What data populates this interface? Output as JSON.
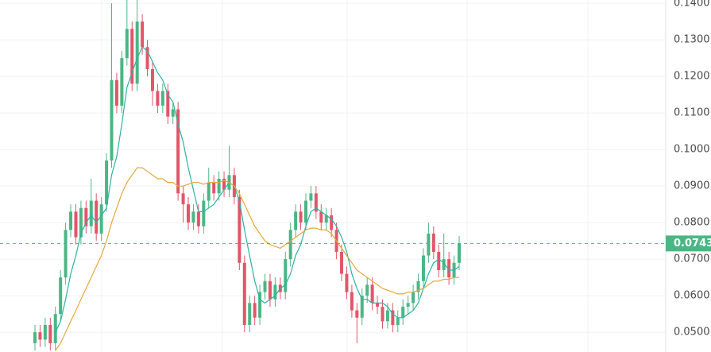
{
  "chart_data": {
    "type": "candlestick",
    "ylim": [
      0.0446,
      0.1409
    ],
    "yticks": [
      {
        "value": 0.14,
        "label": "0.1400"
      },
      {
        "value": 0.13,
        "label": "0.1300"
      },
      {
        "value": 0.12,
        "label": "0.1200"
      },
      {
        "value": 0.11,
        "label": "0.1100"
      },
      {
        "value": 0.1,
        "label": "0.1000"
      },
      {
        "value": 0.09,
        "label": "0.0900"
      },
      {
        "value": 0.08,
        "label": "0.0800"
      },
      {
        "value": 0.07,
        "label": "0.0700"
      },
      {
        "value": 0.06,
        "label": "0.0600"
      },
      {
        "value": 0.05,
        "label": "0.0500"
      }
    ],
    "grid": true,
    "up_color": "#4bb685",
    "down_color": "#e2566a",
    "last_price": 0.0743,
    "last_price_color": "#4bb685",
    "candles": {
      "open": [
        0.047,
        0.05,
        0.048,
        0.052,
        0.047,
        0.055,
        0.065,
        0.078,
        0.083,
        0.076,
        0.084,
        0.079,
        0.086,
        0.077,
        0.085,
        0.097,
        0.119,
        0.112,
        0.125,
        0.133,
        0.118,
        0.135,
        0.128,
        0.122,
        0.116,
        0.112,
        0.116,
        0.109,
        0.111,
        0.088,
        0.085,
        0.08,
        0.083,
        0.079,
        0.086,
        0.091,
        0.088,
        0.092,
        0.089,
        0.093,
        0.087,
        0.069,
        0.052,
        0.058,
        0.054,
        0.061,
        0.064,
        0.059,
        0.063,
        0.061,
        0.07,
        0.078,
        0.083,
        0.08,
        0.086,
        0.088,
        0.083,
        0.08,
        0.082,
        0.078,
        0.072,
        0.066,
        0.061,
        0.056,
        0.054,
        0.06,
        0.063,
        0.058,
        0.057,
        0.053,
        0.056,
        0.052,
        0.054,
        0.057,
        0.058,
        0.061,
        0.064,
        0.071,
        0.077,
        0.072,
        0.067,
        0.07,
        0.065,
        0.069
      ],
      "high": [
        0.052,
        0.052,
        0.054,
        0.054,
        0.057,
        0.067,
        0.08,
        0.085,
        0.085,
        0.086,
        0.086,
        0.092,
        0.088,
        0.087,
        0.099,
        0.14,
        0.121,
        0.127,
        0.141,
        0.135,
        0.141,
        0.137,
        0.13,
        0.124,
        0.118,
        0.118,
        0.118,
        0.113,
        0.113,
        0.09,
        0.087,
        0.085,
        0.085,
        0.088,
        0.095,
        0.093,
        0.094,
        0.094,
        0.101,
        0.095,
        0.089,
        0.071,
        0.06,
        0.06,
        0.063,
        0.066,
        0.066,
        0.065,
        0.065,
        0.072,
        0.08,
        0.085,
        0.085,
        0.088,
        0.09,
        0.09,
        0.085,
        0.084,
        0.084,
        0.08,
        0.074,
        0.068,
        0.063,
        0.058,
        0.062,
        0.065,
        0.065,
        0.06,
        0.059,
        0.058,
        0.058,
        0.056,
        0.059,
        0.06,
        0.063,
        0.066,
        0.073,
        0.08,
        0.079,
        0.074,
        0.077,
        0.072,
        0.071,
        0.0763
      ],
      "low": [
        0.045,
        0.046,
        0.046,
        0.045,
        0.045,
        0.053,
        0.063,
        0.076,
        0.074,
        0.074,
        0.077,
        0.077,
        0.075,
        0.075,
        0.083,
        0.095,
        0.11,
        0.11,
        0.123,
        0.116,
        0.116,
        0.126,
        0.12,
        0.112,
        0.11,
        0.11,
        0.107,
        0.107,
        0.086,
        0.08,
        0.078,
        0.078,
        0.077,
        0.077,
        0.084,
        0.086,
        0.086,
        0.087,
        0.087,
        0.085,
        0.067,
        0.05,
        0.05,
        0.052,
        0.052,
        0.059,
        0.057,
        0.057,
        0.059,
        0.059,
        0.068,
        0.076,
        0.078,
        0.078,
        0.084,
        0.081,
        0.078,
        0.078,
        0.076,
        0.07,
        0.064,
        0.059,
        0.054,
        0.047,
        0.052,
        0.058,
        0.056,
        0.055,
        0.051,
        0.051,
        0.05,
        0.05,
        0.052,
        0.055,
        0.056,
        0.059,
        0.062,
        0.069,
        0.07,
        0.065,
        0.065,
        0.063,
        0.063,
        0.067
      ],
      "close": [
        0.05,
        0.048,
        0.052,
        0.047,
        0.055,
        0.065,
        0.078,
        0.083,
        0.076,
        0.084,
        0.079,
        0.086,
        0.077,
        0.085,
        0.097,
        0.119,
        0.112,
        0.125,
        0.133,
        0.118,
        0.135,
        0.128,
        0.122,
        0.116,
        0.112,
        0.116,
        0.109,
        0.111,
        0.088,
        0.085,
        0.08,
        0.083,
        0.079,
        0.086,
        0.091,
        0.088,
        0.092,
        0.089,
        0.093,
        0.087,
        0.069,
        0.052,
        0.058,
        0.054,
        0.061,
        0.064,
        0.059,
        0.063,
        0.061,
        0.07,
        0.078,
        0.083,
        0.08,
        0.086,
        0.088,
        0.083,
        0.08,
        0.082,
        0.078,
        0.072,
        0.066,
        0.061,
        0.056,
        0.054,
        0.06,
        0.063,
        0.058,
        0.057,
        0.053,
        0.056,
        0.052,
        0.054,
        0.057,
        0.058,
        0.061,
        0.064,
        0.071,
        0.077,
        0.072,
        0.067,
        0.07,
        0.065,
        0.069,
        0.0743
      ]
    },
    "lines": [
      {
        "color": "#2bb3a3",
        "values": [
          null,
          null,
          null,
          null,
          0.05,
          0.053,
          0.059,
          0.066,
          0.071,
          0.077,
          0.08,
          0.082,
          0.08,
          0.082,
          0.084,
          0.093,
          0.098,
          0.107,
          0.117,
          0.121,
          0.125,
          0.128,
          0.127,
          0.124,
          0.121,
          0.119,
          0.115,
          0.113,
          0.107,
          0.102,
          0.095,
          0.089,
          0.083,
          0.083,
          0.084,
          0.085,
          0.087,
          0.089,
          0.091,
          0.09,
          0.086,
          0.078,
          0.071,
          0.064,
          0.059,
          0.058,
          0.059,
          0.06,
          0.062,
          0.063,
          0.066,
          0.071,
          0.074,
          0.079,
          0.083,
          0.084,
          0.083,
          0.082,
          0.081,
          0.079,
          0.076,
          0.072,
          0.066,
          0.062,
          0.059,
          0.059,
          0.058,
          0.058,
          0.058,
          0.057,
          0.055,
          0.054,
          0.054,
          0.055,
          0.056,
          0.058,
          0.062,
          0.066,
          0.069,
          0.07,
          0.069,
          0.067,
          0.067,
          0.068
        ]
      },
      {
        "color": "#e3a93c",
        "values": [
          null,
          null,
          null,
          null,
          0.045,
          0.047,
          0.05,
          0.053,
          0.056,
          0.059,
          0.062,
          0.065,
          0.068,
          0.071,
          0.075,
          0.08,
          0.084,
          0.088,
          0.091,
          0.093,
          0.095,
          0.095,
          0.094,
          0.093,
          0.092,
          0.092,
          0.091,
          0.091,
          0.09,
          0.09,
          0.0905,
          0.091,
          0.091,
          0.0905,
          0.091,
          0.091,
          0.091,
          0.0915,
          0.091,
          0.09,
          0.088,
          0.085,
          0.082,
          0.079,
          0.077,
          0.075,
          0.074,
          0.0735,
          0.073,
          0.074,
          0.075,
          0.076,
          0.077,
          0.078,
          0.0785,
          0.0785,
          0.078,
          0.078,
          0.077,
          0.075,
          0.073,
          0.071,
          0.069,
          0.067,
          0.066,
          0.065,
          0.064,
          0.063,
          0.062,
          0.0615,
          0.061,
          0.0605,
          0.0605,
          0.061,
          0.061,
          0.0615,
          0.062,
          0.063,
          0.064,
          0.064,
          0.0645,
          0.0645,
          0.065,
          0.065
        ]
      }
    ]
  }
}
